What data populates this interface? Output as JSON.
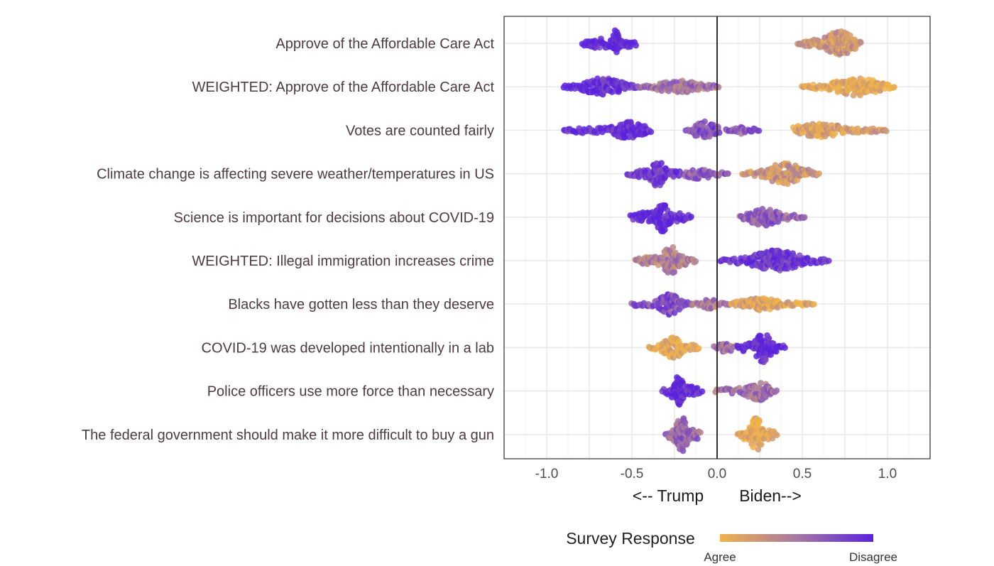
{
  "colors": {
    "agree": "#f0b24a",
    "disagree": "#5b22dc",
    "mid": "#a679a0"
  },
  "chart_data": {
    "type": "scatter",
    "subtype": "beeswarm",
    "title": "",
    "xlabel_left": "<-- Trump",
    "xlabel_right": "Biden-->",
    "ylabel": "",
    "xlim": [
      -1.25,
      1.25
    ],
    "x_ticks": [
      -1.0,
      -0.5,
      0.0,
      0.5,
      1.0
    ],
    "x_tick_labels": [
      "-1.0",
      "-0.5",
      "0.0",
      "0.5",
      "1.0"
    ],
    "grid": true,
    "vertical_reference_line": 0.0,
    "legend": {
      "title": "Survey Response",
      "type": "colorbar",
      "low_label": "Agree",
      "high_label": "Disagree",
      "placement": "bottom"
    },
    "categories": [
      "Approve of the Affordable Care Act",
      "WEIGHTED: Approve of the Affordable Care Act",
      "Votes are counted fairly",
      "Climate change is affecting severe weather/temperatures in US",
      "Science is important for decisions about COVID-19",
      "WEIGHTED: Illegal immigration increases crime",
      "Blacks have gotten less than they deserve",
      "COVID-19 was developed intentionally in a lab",
      "Police officers use more force than necessary",
      "The federal government should make it more difficult to buy a gun"
    ],
    "clusters": [
      {
        "category": 0,
        "x_min": -0.79,
        "x_max": -0.47,
        "center": -0.59,
        "peak_width": 0.015,
        "response": 1.0,
        "max_spread": 0.34
      },
      {
        "category": 0,
        "x_min": 0.47,
        "x_max": 0.85,
        "center": 0.72,
        "peak_width": 0.07,
        "response": 0.25,
        "max_spread": 0.28
      },
      {
        "category": 1,
        "x_min": -0.9,
        "x_max": -0.47,
        "center": -0.67,
        "peak_width": 0.1,
        "response": 0.97,
        "max_spread": 0.2
      },
      {
        "category": 1,
        "x_min": -0.47,
        "x_max": 0.01,
        "center": -0.22,
        "peak_width": 0.12,
        "response": 0.55,
        "max_spread": 0.14
      },
      {
        "category": 1,
        "x_min": 0.5,
        "x_max": 1.05,
        "center": 0.82,
        "peak_width": 0.12,
        "response": 0.05,
        "max_spread": 0.2
      },
      {
        "category": 2,
        "x_min": -0.9,
        "x_max": -0.38,
        "center": -0.52,
        "peak_width": 0.08,
        "response": 0.97,
        "max_spread": 0.2
      },
      {
        "category": 2,
        "x_min": -0.18,
        "x_max": 0.02,
        "center": -0.07,
        "peak_width": 0.06,
        "response": 0.75,
        "max_spread": 0.2
      },
      {
        "category": 2,
        "x_min": 0.05,
        "x_max": 0.25,
        "center": 0.15,
        "peak_width": 0.06,
        "response": 0.7,
        "max_spread": 0.08
      },
      {
        "category": 2,
        "x_min": 0.45,
        "x_max": 1.0,
        "center": 0.6,
        "peak_width": 0.12,
        "response": 0.15,
        "max_spread": 0.16
      },
      {
        "category": 3,
        "x_min": -0.53,
        "x_max": -0.2,
        "center": -0.35,
        "peak_width": 0.04,
        "response": 0.9,
        "max_spread": 0.3
      },
      {
        "category": 3,
        "x_min": -0.2,
        "x_max": 0.07,
        "center": -0.1,
        "peak_width": 0.08,
        "response": 0.7,
        "max_spread": 0.12
      },
      {
        "category": 3,
        "x_min": 0.15,
        "x_max": 0.6,
        "center": 0.4,
        "peak_width": 0.1,
        "response": 0.25,
        "max_spread": 0.24
      },
      {
        "category": 4,
        "x_min": -0.51,
        "x_max": -0.15,
        "center": -0.32,
        "peak_width": 0.03,
        "response": 1.0,
        "max_spread": 0.36
      },
      {
        "category": 4,
        "x_min": 0.13,
        "x_max": 0.52,
        "center": 0.28,
        "peak_width": 0.08,
        "response": 0.65,
        "max_spread": 0.2
      },
      {
        "category": 5,
        "x_min": -0.48,
        "x_max": -0.12,
        "center": -0.27,
        "peak_width": 0.04,
        "response": 0.45,
        "max_spread": 0.32
      },
      {
        "category": 5,
        "x_min": 0.02,
        "x_max": 0.66,
        "center": 0.35,
        "peak_width": 0.12,
        "response": 0.9,
        "max_spread": 0.24
      },
      {
        "category": 6,
        "x_min": -0.5,
        "x_max": -0.15,
        "center": -0.28,
        "peak_width": 0.05,
        "response": 0.75,
        "max_spread": 0.24
      },
      {
        "category": 6,
        "x_min": -0.15,
        "x_max": 0.08,
        "center": -0.05,
        "peak_width": 0.05,
        "response": 0.45,
        "max_spread": 0.12
      },
      {
        "category": 6,
        "x_min": 0.08,
        "x_max": 0.57,
        "center": 0.25,
        "peak_width": 0.1,
        "response": 0.1,
        "max_spread": 0.14
      },
      {
        "category": 7,
        "x_min": -0.4,
        "x_max": -0.1,
        "center": -0.26,
        "peak_width": 0.05,
        "response": 0.05,
        "max_spread": 0.24
      },
      {
        "category": 7,
        "x_min": -0.02,
        "x_max": 0.12,
        "center": 0.05,
        "peak_width": 0.05,
        "response": 0.55,
        "max_spread": 0.1
      },
      {
        "category": 7,
        "x_min": 0.12,
        "x_max": 0.4,
        "center": 0.27,
        "peak_width": 0.04,
        "response": 1.0,
        "max_spread": 0.34
      },
      {
        "category": 8,
        "x_min": -0.32,
        "x_max": -0.09,
        "center": -0.23,
        "peak_width": 0.03,
        "response": 1.0,
        "max_spread": 0.34
      },
      {
        "category": 8,
        "x_min": -0.01,
        "x_max": 0.35,
        "center": 0.24,
        "peak_width": 0.06,
        "response": 0.55,
        "max_spread": 0.22
      },
      {
        "category": 9,
        "x_min": -0.3,
        "x_max": -0.09,
        "center": -0.21,
        "peak_width": 0.03,
        "response": 0.6,
        "max_spread": 0.42
      },
      {
        "category": 9,
        "x_min": 0.12,
        "x_max": 0.35,
        "center": 0.23,
        "peak_width": 0.03,
        "response": 0.05,
        "max_spread": 0.4
      }
    ]
  }
}
